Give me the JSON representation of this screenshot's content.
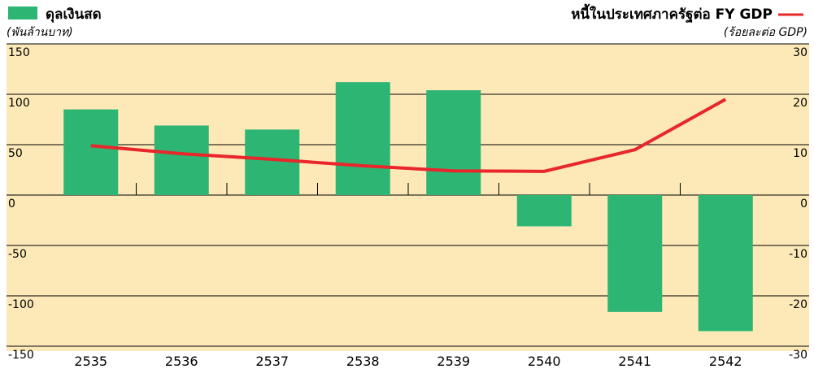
{
  "chart_data": {
    "type": "bar",
    "categories": [
      "2535",
      "2536",
      "2537",
      "2538",
      "2539",
      "2540",
      "2541",
      "2542"
    ],
    "series": [
      {
        "name": "ดุลเงินสด",
        "type": "bar",
        "color": "#2db574",
        "values": [
          85,
          69,
          65,
          112,
          104,
          -31,
          -116,
          -135
        ]
      },
      {
        "name": "หนี้ในประเทศภาครัฐต่อ FY GDP",
        "type": "line",
        "axis": "y2",
        "color": "#e8262b",
        "values": [
          9.8,
          8.2,
          7.1,
          5.8,
          4.8,
          4.7,
          9.0,
          19.0
        ]
      }
    ],
    "y_label": "(พันล้านบาท)",
    "y2_label": "(ร้อยละต่อ GDP)",
    "ylim": [
      -150,
      150
    ],
    "yticks": [
      -150,
      -100,
      -50,
      0,
      50,
      100,
      150
    ],
    "y2lim": [
      -30,
      30
    ],
    "y2ticks": [
      -30,
      -20,
      -10,
      0,
      10,
      20,
      30
    ],
    "grid": true,
    "background": "#fde9b8"
  }
}
